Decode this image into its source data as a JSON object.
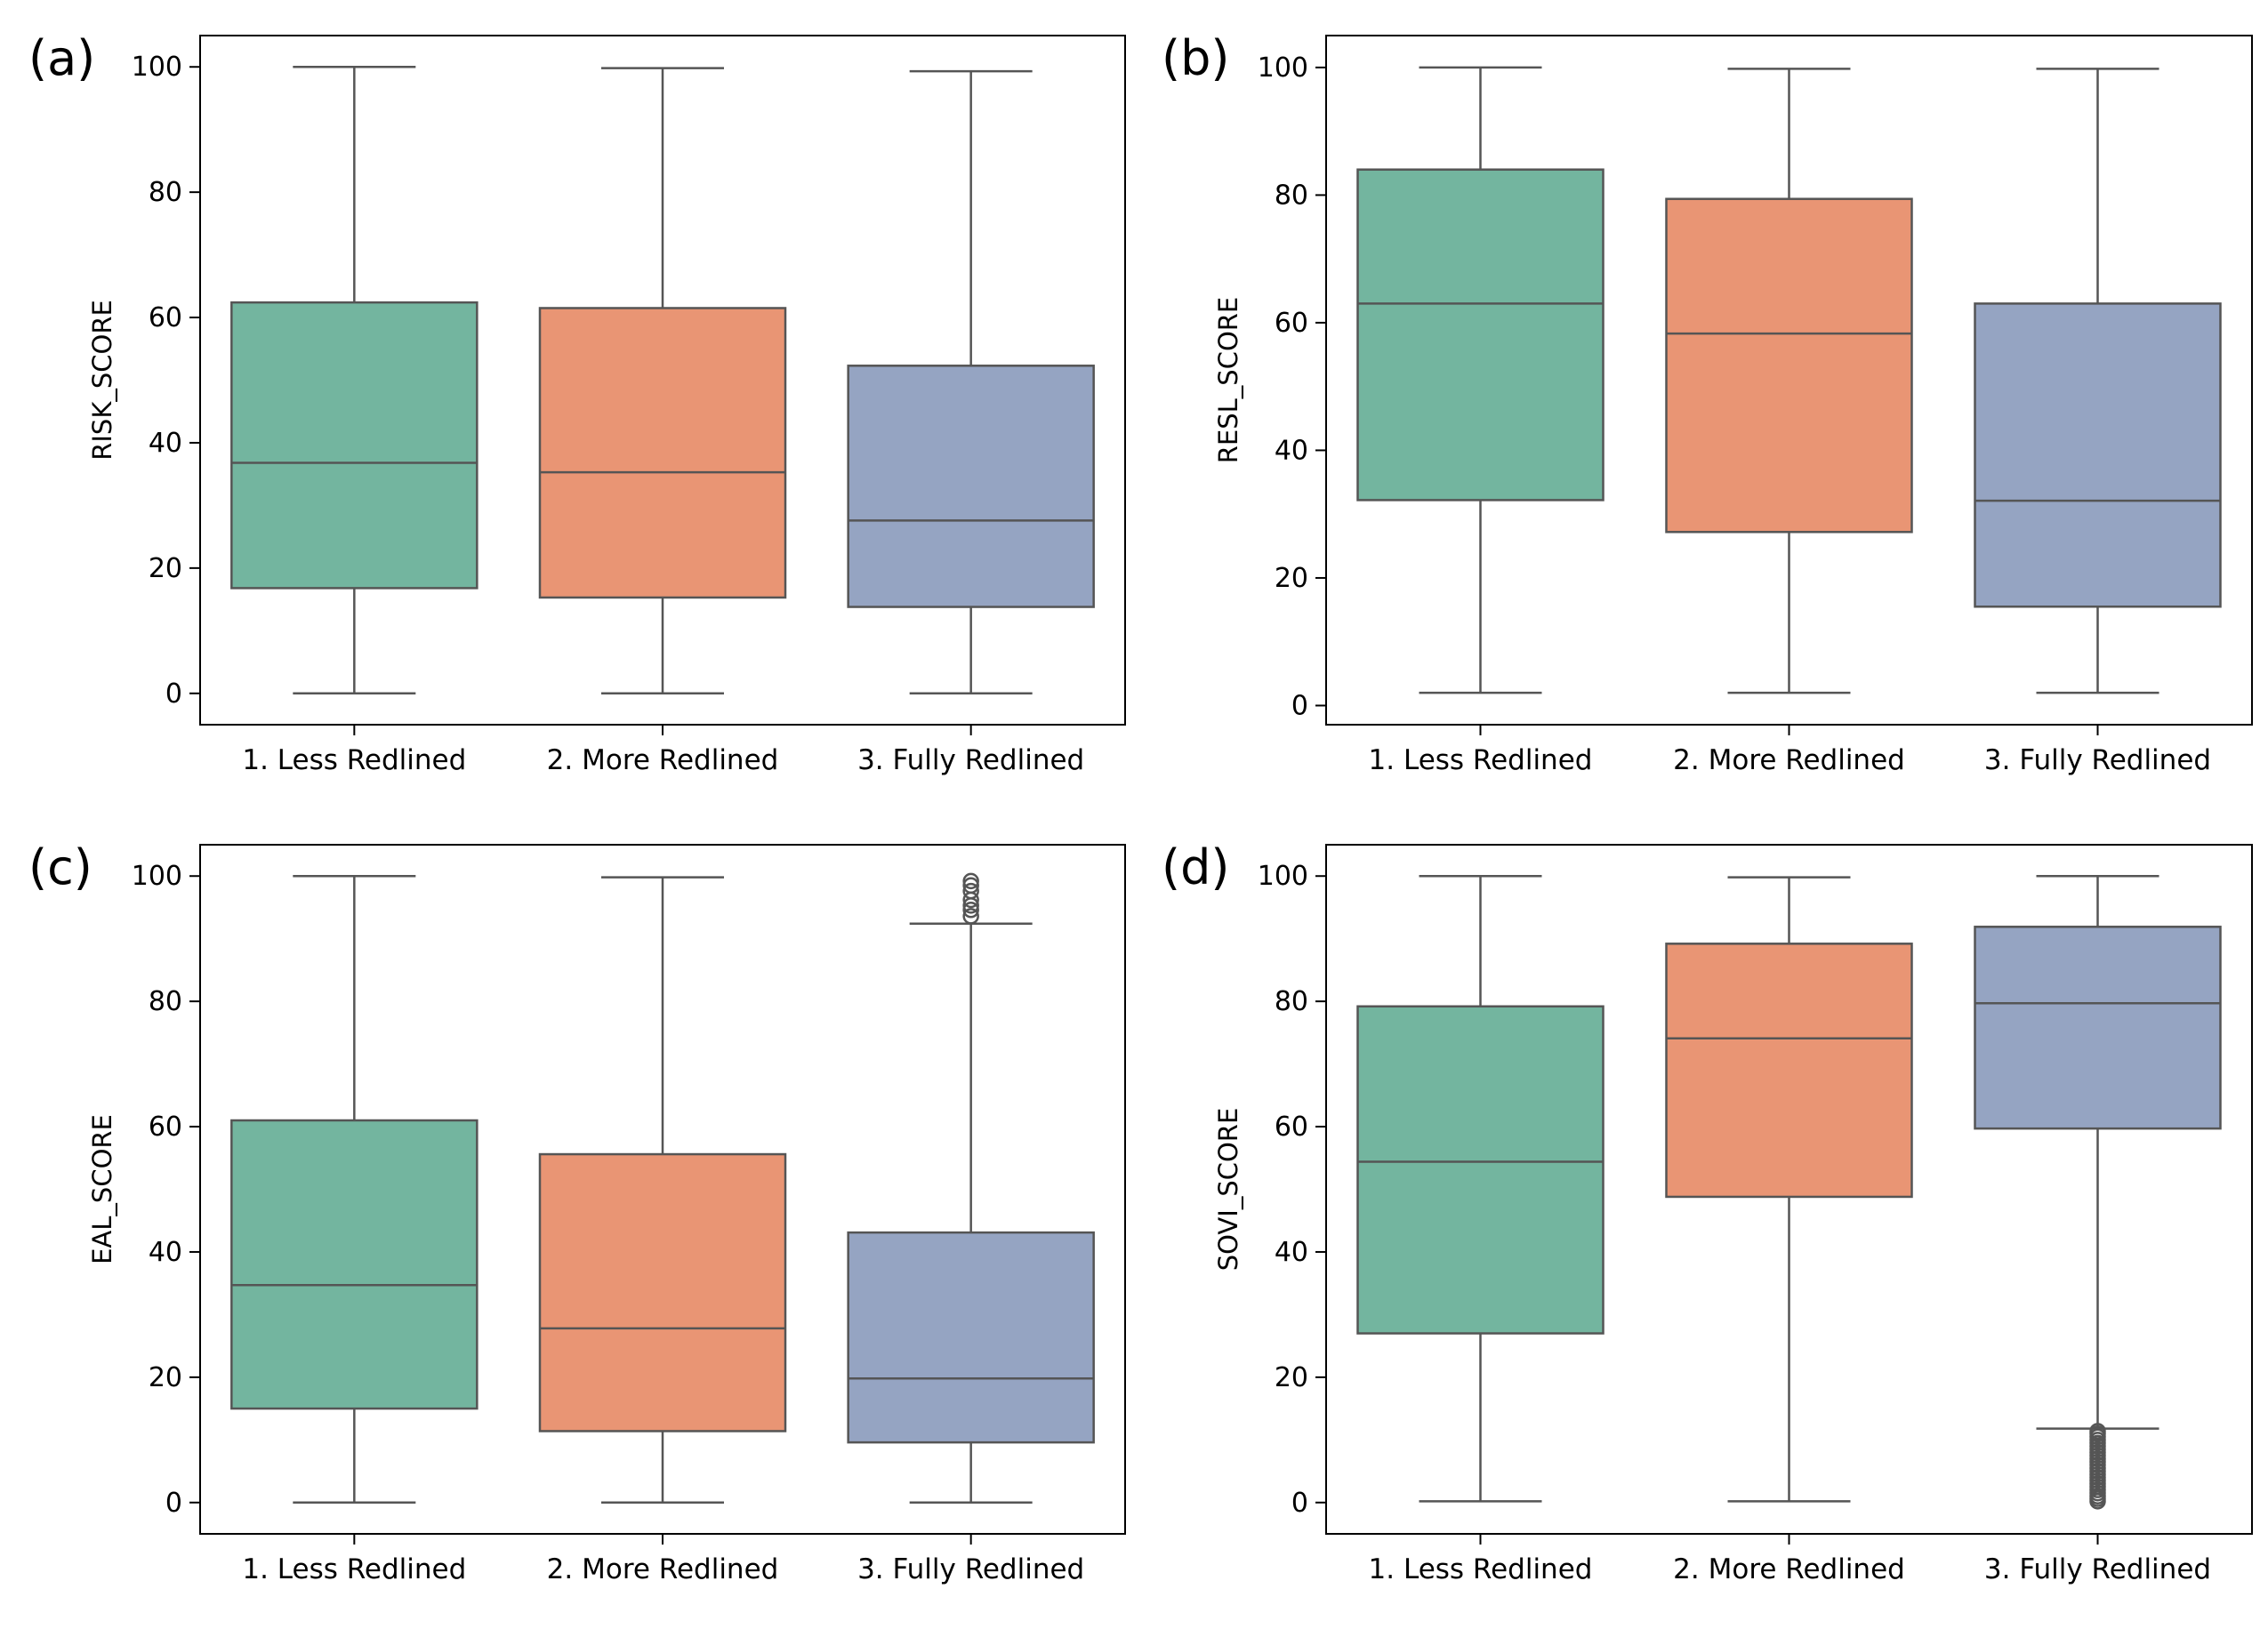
{
  "figure": {
    "category_colors": [
      "#73b59f",
      "#e99574",
      "#95a4c2"
    ],
    "line_color": "#555555",
    "frame_color": "#000000"
  },
  "chart_data": [
    {
      "type": "box",
      "panel_label": "(a)",
      "title": "",
      "xlabel": "",
      "ylabel": "RISK_SCORE",
      "ylim": [
        -5,
        105
      ],
      "yticks": [
        0,
        20,
        40,
        60,
        80,
        100
      ],
      "categories": [
        "1. Less Redlined",
        "2. More Redlined",
        "3. Fully Redlined"
      ],
      "boxes": [
        {
          "whisker_low": 0,
          "q1": 16.8,
          "median": 36.8,
          "q3": 62.4,
          "whisker_high": 100,
          "outliers": []
        },
        {
          "whisker_low": 0,
          "q1": 15.3,
          "median": 35.3,
          "q3": 61.5,
          "whisker_high": 99.8,
          "outliers": []
        },
        {
          "whisker_low": 0,
          "q1": 13.8,
          "median": 27.6,
          "q3": 52.3,
          "whisker_high": 99.3,
          "outliers": []
        }
      ]
    },
    {
      "type": "box",
      "panel_label": "(b)",
      "title": "",
      "xlabel": "",
      "ylabel": "RESL_SCORE",
      "ylim": [
        -3,
        105
      ],
      "yticks": [
        0,
        20,
        40,
        60,
        80,
        100
      ],
      "categories": [
        "1. Less Redlined",
        "2. More Redlined",
        "3. Fully Redlined"
      ],
      "boxes": [
        {
          "whisker_low": 2,
          "q1": 32.2,
          "median": 63,
          "q3": 84,
          "whisker_high": 100,
          "outliers": []
        },
        {
          "whisker_low": 2,
          "q1": 27.2,
          "median": 58.3,
          "q3": 79.4,
          "whisker_high": 99.8,
          "outliers": []
        },
        {
          "whisker_low": 2,
          "q1": 15.5,
          "median": 32.1,
          "q3": 63,
          "whisker_high": 99.8,
          "outliers": []
        }
      ]
    },
    {
      "type": "box",
      "panel_label": "(c)",
      "title": "",
      "xlabel": "",
      "ylabel": "EAL_SCORE",
      "ylim": [
        -5,
        105
      ],
      "yticks": [
        0,
        20,
        40,
        60,
        80,
        100
      ],
      "categories": [
        "1. Less Redlined",
        "2. More Redlined",
        "3. Fully Redlined"
      ],
      "boxes": [
        {
          "whisker_low": 0,
          "q1": 15,
          "median": 34.7,
          "q3": 61,
          "whisker_high": 100,
          "outliers": []
        },
        {
          "whisker_low": 0,
          "q1": 11.4,
          "median": 27.8,
          "q3": 55.6,
          "whisker_high": 99.8,
          "outliers": []
        },
        {
          "whisker_low": 0,
          "q1": 9.6,
          "median": 19.8,
          "q3": 43.1,
          "whisker_high": 92.4,
          "outliers": [
            93.6,
            94.6,
            95.3,
            96.2,
            97.6,
            98.5,
            99.2
          ]
        }
      ]
    },
    {
      "type": "box",
      "panel_label": "(d)",
      "title": "",
      "xlabel": "",
      "ylabel": "SOVI_SCORE",
      "ylim": [
        -5,
        105
      ],
      "yticks": [
        0,
        20,
        40,
        60,
        80,
        100
      ],
      "categories": [
        "1. Less Redlined",
        "2. More Redlined",
        "3. Fully Redlined"
      ],
      "boxes": [
        {
          "whisker_low": 0.2,
          "q1": 27,
          "median": 54.4,
          "q3": 79.2,
          "whisker_high": 100,
          "outliers": []
        },
        {
          "whisker_low": 0.2,
          "q1": 48.8,
          "median": 74.1,
          "q3": 89.2,
          "whisker_high": 99.8,
          "outliers": []
        },
        {
          "whisker_low": 11.8,
          "q1": 59.7,
          "median": 79.7,
          "q3": 91.9,
          "whisker_high": 100,
          "outliers": [
            0.2,
            0.6,
            1.0,
            1.5,
            2.0,
            2.5,
            3.0,
            3.5,
            4.0,
            4.5,
            5.0,
            5.5,
            6.0,
            6.5,
            7.0,
            7.5,
            8.0,
            8.5,
            9.0,
            9.5,
            10.0,
            10.5,
            11.0,
            11.4
          ]
        }
      ]
    }
  ]
}
